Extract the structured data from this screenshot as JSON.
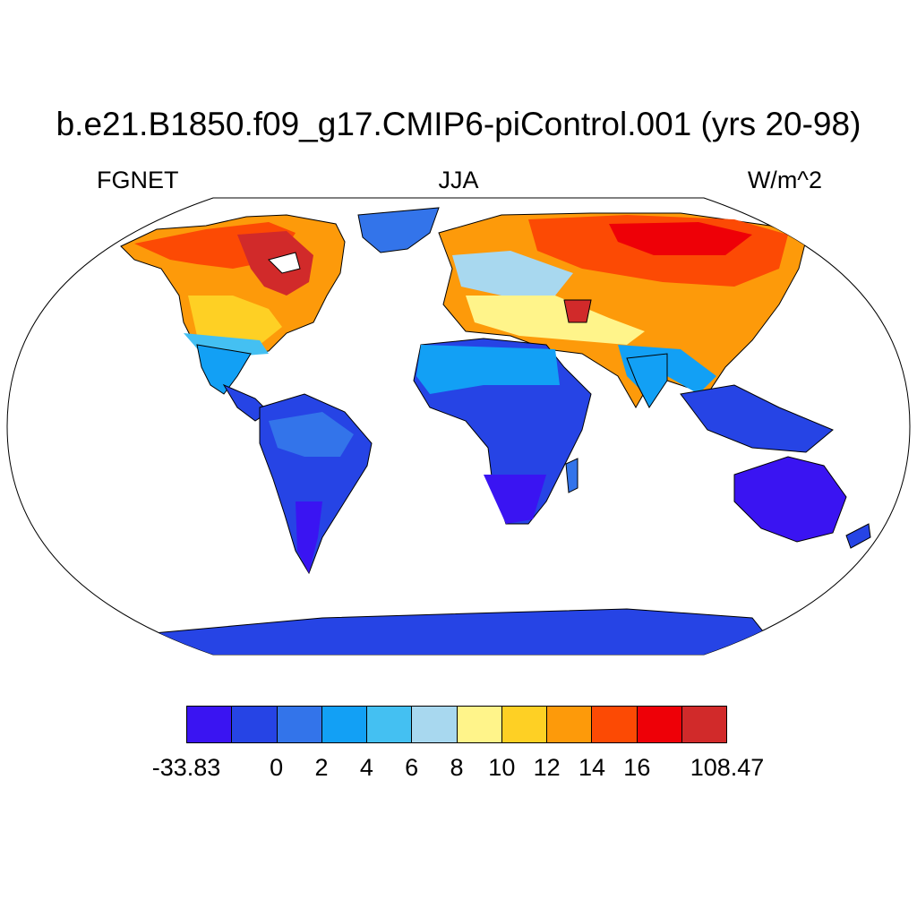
{
  "header": {
    "title": "b.e21.B1850.f09_g17.CMIP6-piControl.001 (yrs 20-98)",
    "left": "FGNET",
    "center": "JJA",
    "right": "W/m^2"
  },
  "colorbar": {
    "colors": [
      "#3a14f2",
      "#2644e5",
      "#3374ea",
      "#12a0f5",
      "#44c0f2",
      "#a8d8ef",
      "#fff48a",
      "#fed024",
      "#fd9a0a",
      "#fc4a04",
      "#ee0007",
      "#d12a2a"
    ],
    "labels": [
      "-33.83",
      "0",
      "2",
      "4",
      "6",
      "8",
      "10",
      "12",
      "14",
      "16",
      "108.47"
    ]
  },
  "map": {
    "projection": "Robinson",
    "ocean_color": "#ffffff",
    "coastline_color": "#000000"
  }
}
